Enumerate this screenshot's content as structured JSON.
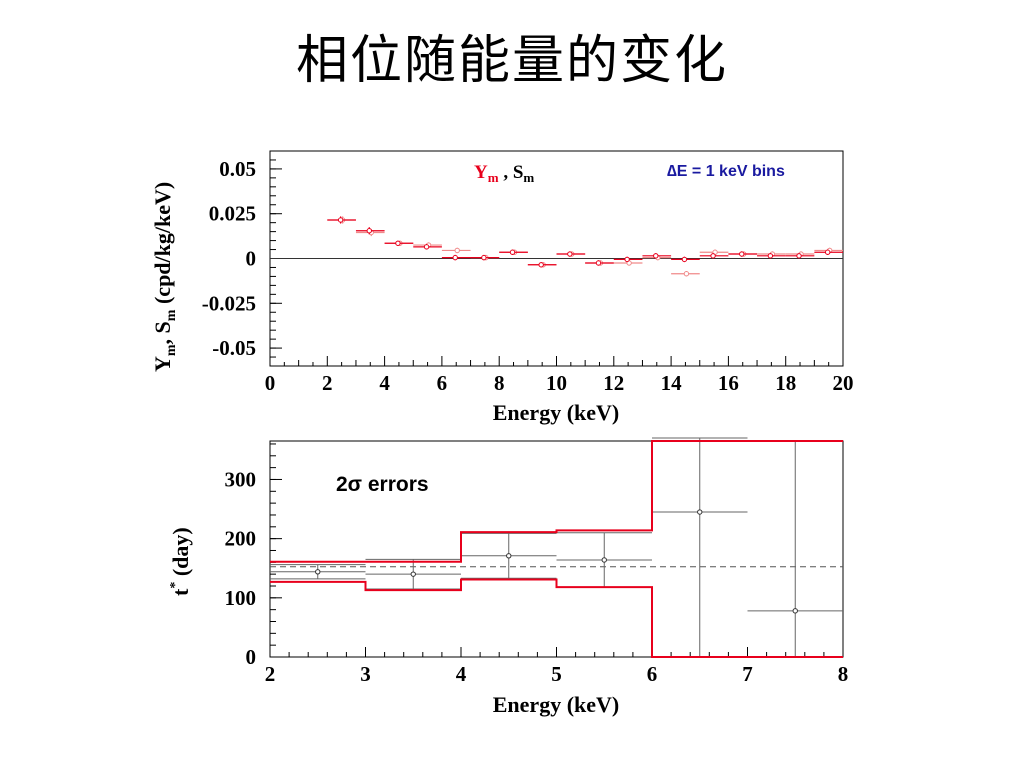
{
  "slide": {
    "title": "相位随能量的变化"
  },
  "colors": {
    "red": "#e8001c",
    "pink": "#f08a8a",
    "blue": "#1a1aa0",
    "black": "#000000",
    "grey": "#666666"
  },
  "chart_data": [
    {
      "type": "scatter",
      "legend": {
        "y_main": "Y",
        "y_sub": "m",
        "sep": " , ",
        "s_main": "S",
        "s_sub": "m",
        "position": "top-center"
      },
      "annotation": "∆E = 1 keV bins",
      "xlabel": "Energy (keV)",
      "ylabel_parts": {
        "a": "Y",
        "a_sub": "m",
        "b": ", S",
        "b_sub": "m",
        "c": " (cpd/kg/keV)"
      },
      "xlim": [
        0,
        20
      ],
      "ylim": [
        -0.06,
        0.06
      ],
      "x_ticks": [
        "0",
        "2",
        "4",
        "6",
        "8",
        "10",
        "12",
        "14",
        "16",
        "18",
        "20"
      ],
      "y_ticks": [
        "0.05",
        "0.025",
        "0",
        "-0.025",
        "-0.05"
      ],
      "y_tick_values": [
        0.05,
        0.025,
        0,
        -0.025,
        -0.05
      ],
      "zero_line": true,
      "series": [
        {
          "name": "Ym",
          "x": [
            2.5,
            3.5,
            4.5,
            5.5,
            6.5,
            7.5,
            8.5,
            9.5,
            10.5,
            11.5,
            12.5,
            13.5,
            14.5,
            15.5,
            16.5,
            17.5,
            18.5,
            19.5
          ],
          "y": [
            0.0215,
            0.0155,
            0.0085,
            0.0065,
            0.0005,
            0.0005,
            0.0035,
            -0.0035,
            0.0025,
            -0.0025,
            -0.0005,
            0.0015,
            -0.0005,
            0.0015,
            0.0025,
            0.0015,
            0.0015,
            0.0035
          ],
          "err": [
            0.002,
            0.002,
            0.0015,
            0.0015,
            0.0015,
            0.0015,
            0.0015,
            0.0015,
            0.0015,
            0.0015,
            0.0015,
            0.0015,
            0.0015,
            0.0015,
            0.0015,
            0.0015,
            0.0015,
            0.0015
          ]
        },
        {
          "name": "Sm",
          "x": [
            2.5,
            3.5,
            4.5,
            5.5,
            6.5,
            7.5,
            8.5,
            9.5,
            10.5,
            11.5,
            12.5,
            13.5,
            14.5,
            15.5,
            16.5,
            17.5,
            18.5,
            19.5
          ],
          "y": [
            0.0215,
            0.0145,
            0.0085,
            0.0075,
            0.0045,
            0.0005,
            0.0035,
            -0.0035,
            0.0025,
            -0.0025,
            -0.0025,
            0.0005,
            -0.0085,
            0.0035,
            0.0025,
            0.0025,
            0.0025,
            0.0045
          ],
          "err": [
            0.002,
            0.002,
            0.0015,
            0.0015,
            0.0015,
            0.0015,
            0.0015,
            0.0015,
            0.0015,
            0.0015,
            0.0015,
            0.0015,
            0.0015,
            0.0015,
            0.0015,
            0.0015,
            0.0015,
            0.0015
          ]
        }
      ]
    },
    {
      "type": "line",
      "annotation": "2σ errors",
      "xlabel": "Energy (keV)",
      "ylabel_main": "t",
      "ylabel_sup": "*",
      "ylabel_rest": " (day)",
      "xlim": [
        2,
        8
      ],
      "ylim": [
        0,
        365
      ],
      "x_ticks": [
        "2",
        "3",
        "4",
        "5",
        "6",
        "7",
        "8"
      ],
      "y_ticks": [
        "300",
        "200",
        "100",
        "0"
      ],
      "y_tick_values": [
        300,
        200,
        100,
        0
      ],
      "reference_line": 152.5,
      "points": {
        "x": [
          2.5,
          3.5,
          4.5,
          5.5,
          6.5,
          7.5
        ],
        "y": [
          144,
          140,
          171,
          164,
          245,
          78
        ],
        "err_low": [
          12,
          25,
          38,
          46,
          245,
          78
        ],
        "err_high": [
          12,
          25,
          38,
          46,
          125,
          287
        ]
      },
      "band_upper": [
        161,
        161,
        211,
        214,
        365,
        365
      ],
      "band_lower": [
        127,
        113,
        131,
        118,
        0,
        0
      ]
    }
  ]
}
